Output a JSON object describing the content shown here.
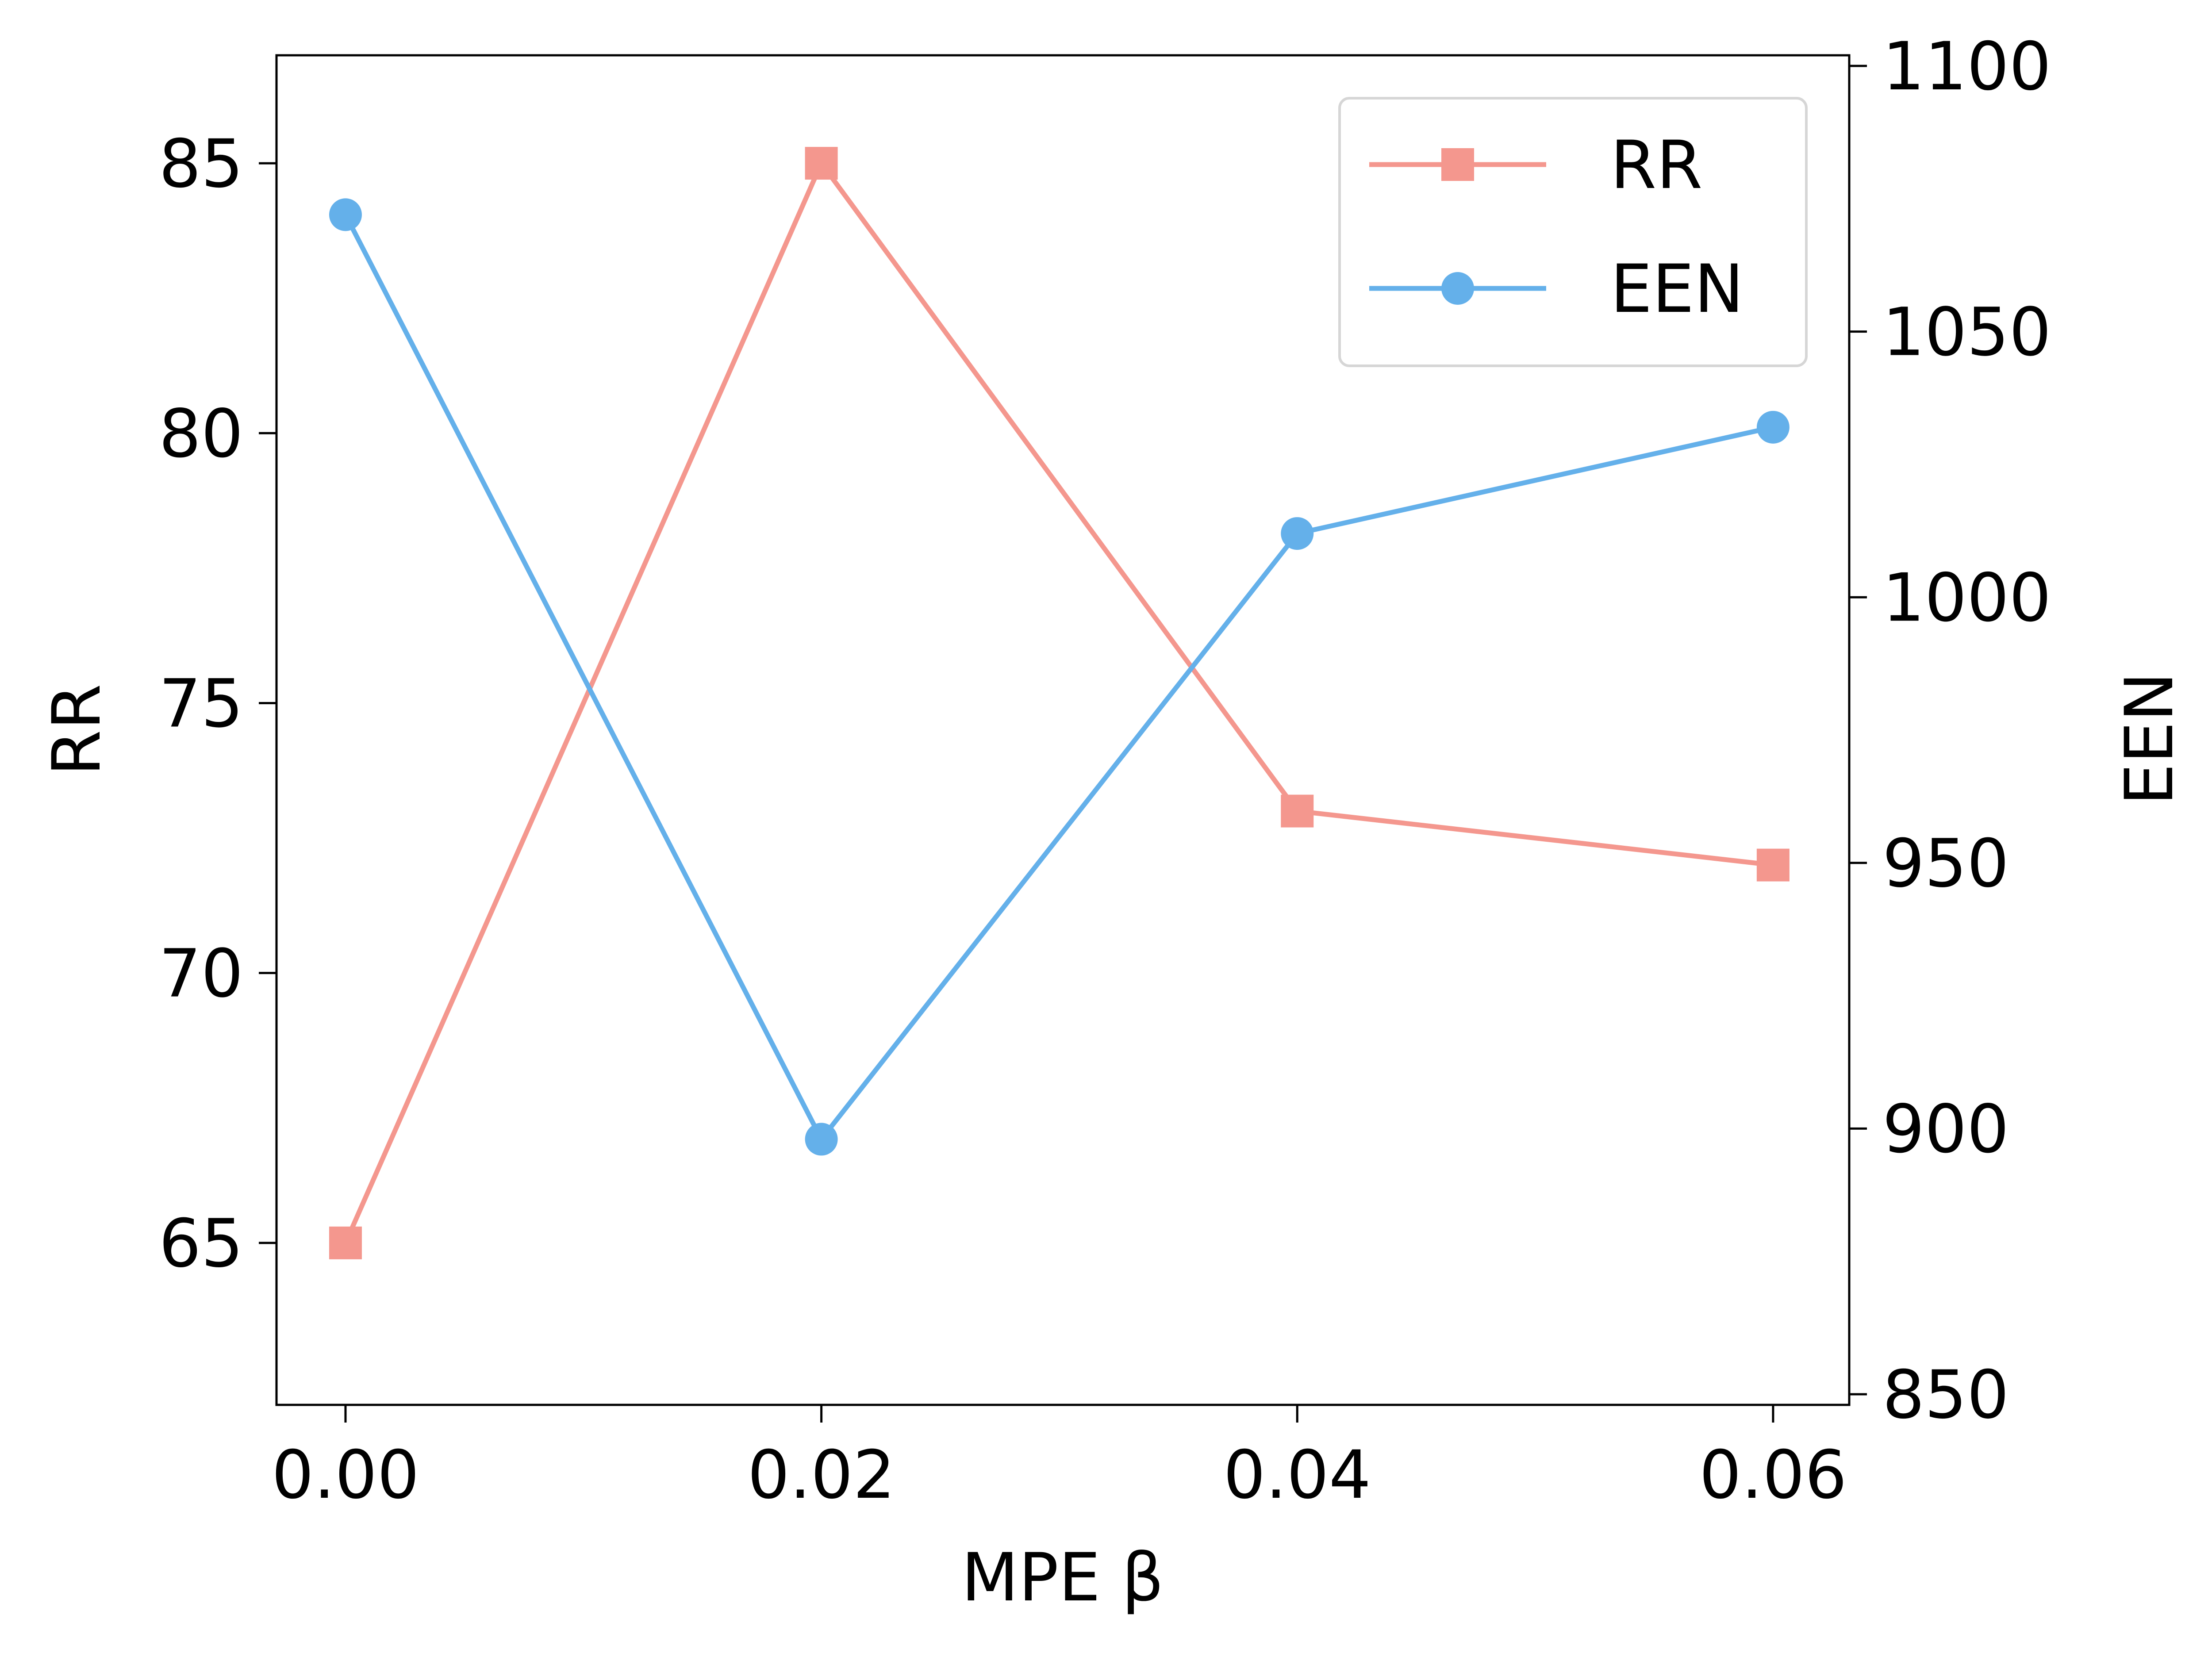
{
  "chart_data": {
    "type": "line",
    "title": "",
    "xlabel": "MPE β",
    "ylabel_left": "RR",
    "ylabel_right": "EEN",
    "x": [
      0.0,
      0.02,
      0.04,
      0.06
    ],
    "x_tick_labels": [
      "0.00",
      "0.02",
      "0.04",
      "0.06"
    ],
    "x_lim": [
      -0.0029,
      0.0632
    ],
    "y_left_lim": [
      62,
      87
    ],
    "y_left_ticks": [
      65,
      70,
      75,
      80,
      85
    ],
    "y_right_lim": [
      848,
      1102
    ],
    "y_right_ticks": [
      850,
      900,
      950,
      1000,
      1050,
      1100
    ],
    "grid": false,
    "legend_position": "top-right",
    "series": [
      {
        "name": "RR",
        "axis": "left",
        "marker": "square",
        "color": "#F4978E",
        "values": [
          65,
          85,
          73,
          72
        ]
      },
      {
        "name": "EEN",
        "axis": "right",
        "marker": "circle",
        "color": "#64B0EA",
        "values": [
          1072,
          898,
          1012,
          1032
        ]
      }
    ]
  }
}
